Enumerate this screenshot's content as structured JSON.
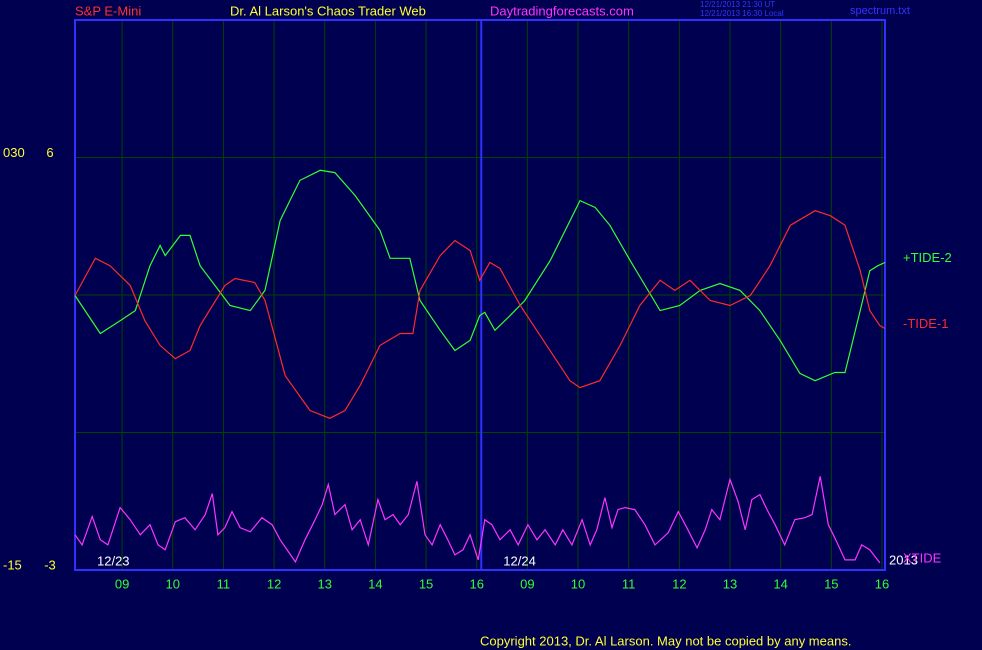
{
  "chart_data": {
    "type": "line",
    "header": {
      "left": "S&P E-Mini",
      "title": "Dr. Al Larson's Chaos Trader Web",
      "site": "Daytradingforecasts.com",
      "stamp_ut": "12/21/2013 21:30 UT",
      "stamp_local": "12/21/2013 16:30 Local",
      "file": "spectrum.txt"
    },
    "copyright": "Copyright 2013, Dr. Al Larson. May not be copied by any means.",
    "year": "2013",
    "xlim": [
      0.07,
      16.06
    ],
    "xticks": [
      {
        "value": 1,
        "label": "09"
      },
      {
        "value": 2,
        "label": "10"
      },
      {
        "value": 3,
        "label": "11"
      },
      {
        "value": 4,
        "label": "12"
      },
      {
        "value": 5,
        "label": "13"
      },
      {
        "value": 6,
        "label": "14"
      },
      {
        "value": 7,
        "label": "15"
      },
      {
        "value": 8,
        "label": "16"
      },
      {
        "value": 9,
        "label": "09"
      },
      {
        "value": 10,
        "label": "10"
      },
      {
        "value": 11,
        "label": "11"
      },
      {
        "value": 12,
        "label": "12"
      },
      {
        "value": 13,
        "label": "13"
      },
      {
        "value": 14,
        "label": "14"
      },
      {
        "value": 15,
        "label": "15"
      },
      {
        "value": 16,
        "label": "16"
      }
    ],
    "day_starts": [
      {
        "value": 0.07,
        "label": "12/23"
      },
      {
        "value": 8.09,
        "label": "12/24"
      }
    ],
    "ylim": [
      -3,
      9
    ],
    "yticks": [
      -3,
      {
        "value": 0,
        "label": null
      },
      {
        "value": 3,
        "label": null
      },
      6
    ],
    "y2lim": [
      -15,
      45
    ],
    "y2ticks": [
      -15,
      {
        "value": 30,
        "label": "030"
      }
    ],
    "grid": true,
    "series": [
      {
        "name": "+TIDE-2",
        "color": "#33ff33",
        "x": [
          0.07,
          0.57,
          0.96,
          1.26,
          1.55,
          1.75,
          1.85,
          2.15,
          2.34,
          2.54,
          3.13,
          3.53,
          3.82,
          4.12,
          4.51,
          4.91,
          5.2,
          5.6,
          6.09,
          6.29,
          6.68,
          6.88,
          7.28,
          7.57,
          7.87,
          8.06,
          8.16,
          8.36,
          8.66,
          8.95,
          9.45,
          10.04,
          10.34,
          10.63,
          11.03,
          11.62,
          12.01,
          12.41,
          12.8,
          13.2,
          13.59,
          13.99,
          14.38,
          14.68,
          15.07,
          15.27,
          15.57,
          15.76,
          15.92,
          16.06
        ],
        "values": [
          2.99,
          2.16,
          2.44,
          2.66,
          3.64,
          4.08,
          3.86,
          4.3,
          4.3,
          3.64,
          2.77,
          2.66,
          3.1,
          4.63,
          5.5,
          5.72,
          5.67,
          5.17,
          4.41,
          3.8,
          3.8,
          2.88,
          2.23,
          1.79,
          2.01,
          2.55,
          2.62,
          2.23,
          2.55,
          2.88,
          3.75,
          5.06,
          4.91,
          4.52,
          3.75,
          2.66,
          2.77,
          3.1,
          3.25,
          3.1,
          2.66,
          2.01,
          1.29,
          1.13,
          1.31,
          1.31,
          2.66,
          3.53,
          3.64,
          3.71
        ]
      },
      {
        "name": "-TIDE-1",
        "color": "#ff2a2a",
        "x": [
          0.07,
          0.47,
          0.76,
          1.16,
          1.45,
          1.75,
          2.05,
          2.34,
          2.54,
          3.03,
          3.23,
          3.62,
          3.82,
          4.22,
          4.71,
          5.1,
          5.4,
          5.7,
          6.09,
          6.49,
          6.74,
          6.88,
          7.28,
          7.57,
          7.87,
          8.06,
          8.26,
          8.46,
          8.86,
          9.25,
          9.84,
          10.04,
          10.43,
          10.83,
          11.22,
          11.62,
          11.91,
          12.21,
          12.61,
          13.0,
          13.4,
          13.79,
          14.19,
          14.68,
          14.98,
          15.27,
          15.57,
          15.76,
          15.96,
          16.06
        ],
        "values": [
          2.99,
          3.8,
          3.64,
          3.21,
          2.44,
          1.9,
          1.61,
          1.79,
          2.33,
          3.21,
          3.36,
          3.27,
          2.88,
          1.24,
          0.48,
          0.31,
          0.48,
          1.03,
          1.9,
          2.16,
          2.16,
          3.1,
          3.86,
          4.19,
          3.97,
          3.32,
          3.71,
          3.58,
          2.77,
          2.12,
          1.13,
          0.98,
          1.13,
          1.9,
          2.77,
          3.32,
          3.1,
          3.32,
          2.88,
          2.77,
          2.99,
          3.64,
          4.52,
          4.84,
          4.73,
          4.52,
          3.53,
          2.66,
          2.33,
          2.27
        ]
      },
      {
        "name": "XTIDE",
        "color": "#ff33ff",
        "axis": "y2",
        "x": [
          0.07,
          0.21,
          0.41,
          0.57,
          0.72,
          0.96,
          1.16,
          1.36,
          1.55,
          1.71,
          1.85,
          2.05,
          2.24,
          2.44,
          2.64,
          2.78,
          2.89,
          3.03,
          3.17,
          3.33,
          3.53,
          3.76,
          3.96,
          4.12,
          4.42,
          4.61,
          4.81,
          4.95,
          5.07,
          5.2,
          5.4,
          5.54,
          5.7,
          5.86,
          6.05,
          6.19,
          6.35,
          6.49,
          6.65,
          6.82,
          6.98,
          7.12,
          7.28,
          7.43,
          7.57,
          7.73,
          7.87,
          8.03,
          8.16,
          8.3,
          8.46,
          8.66,
          8.82,
          9.01,
          9.19,
          9.35,
          9.55,
          9.7,
          9.88,
          10.08,
          10.24,
          10.37,
          10.53,
          10.67,
          10.79,
          10.93,
          11.12,
          11.32,
          11.52,
          11.78,
          11.98,
          12.17,
          12.35,
          12.51,
          12.64,
          12.8,
          13.0,
          13.16,
          13.3,
          13.43,
          13.59,
          13.73,
          13.89,
          14.08,
          14.28,
          14.48,
          14.62,
          14.78,
          14.94,
          15.07,
          15.27,
          15.47,
          15.6,
          15.76,
          15.96
        ],
        "values": [
          -11.16,
          -12.26,
          -9.18,
          -11.71,
          -12.26,
          -8.19,
          -9.51,
          -11.16,
          -10.06,
          -12.26,
          -12.8,
          -9.73,
          -9.29,
          -10.61,
          -8.96,
          -6.66,
          -11.16,
          -10.39,
          -8.63,
          -10.39,
          -10.83,
          -9.29,
          -10.06,
          -11.71,
          -14.12,
          -11.71,
          -9.51,
          -7.86,
          -5.67,
          -8.96,
          -7.86,
          -10.61,
          -9.51,
          -12.26,
          -7.32,
          -9.51,
          -8.96,
          -10.06,
          -8.96,
          -5.34,
          -11.16,
          -12.26,
          -10.06,
          -11.71,
          -13.35,
          -12.8,
          -11.16,
          -13.9,
          -9.51,
          -10.06,
          -11.71,
          -10.61,
          -12.26,
          -10.06,
          -11.71,
          -10.61,
          -12.26,
          -10.61,
          -12.26,
          -9.51,
          -12.26,
          -10.61,
          -7.1,
          -10.39,
          -8.41,
          -8.19,
          -8.41,
          -10.06,
          -12.26,
          -10.94,
          -8.63,
          -10.61,
          -12.59,
          -10.61,
          -8.41,
          -9.51,
          -5.12,
          -7.54,
          -10.61,
          -7.32,
          -6.77,
          -8.41,
          -10.06,
          -12.26,
          -9.51,
          -9.29,
          -8.96,
          -4.79,
          -10.06,
          -11.49,
          -13.9,
          -13.9,
          -12.26,
          -12.8,
          -14.23
        ]
      }
    ]
  }
}
